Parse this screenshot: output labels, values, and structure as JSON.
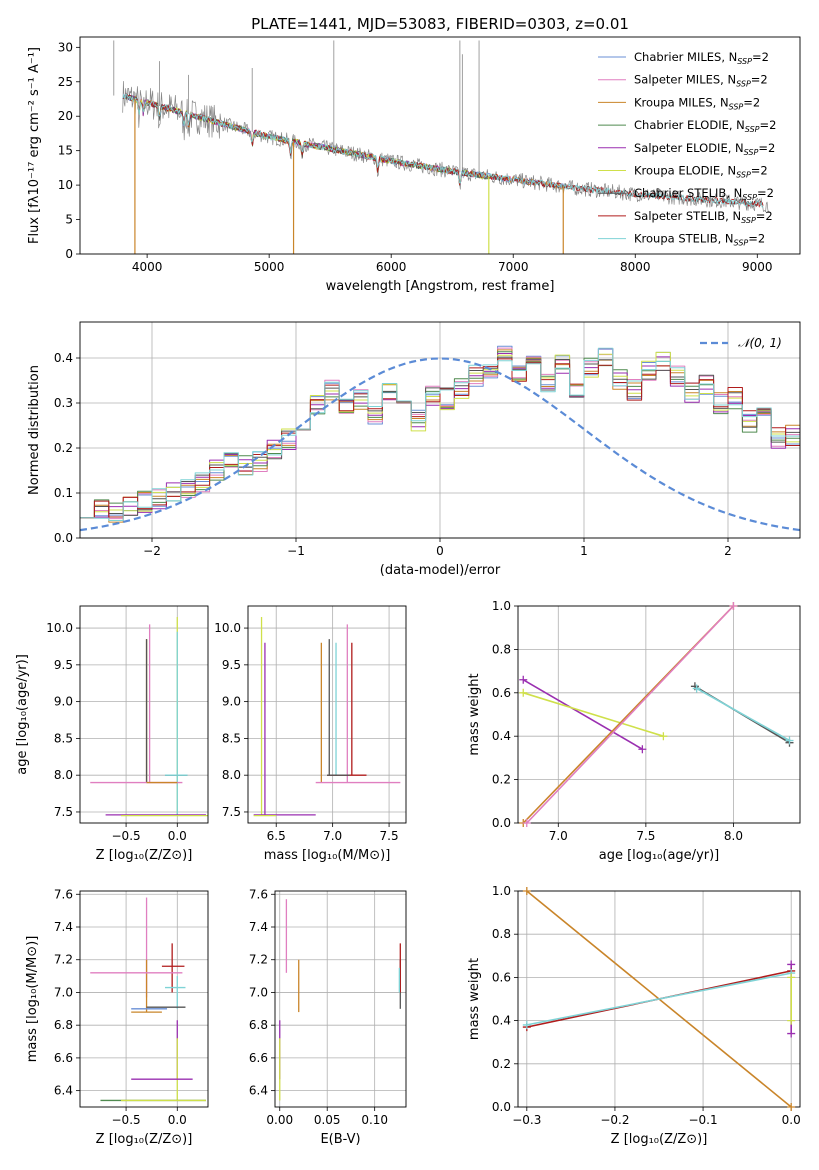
{
  "figure_title": "PLATE=1441, MJD=53083, FIBERID=0303, z=0.01",
  "colors": {
    "Chabrier MILES": "#6a8fd6",
    "Salpeter MILES": "#e07fc0",
    "Kroupa MILES": "#c9852a",
    "Chabrier ELODIE": "#4f8a4f",
    "Salpeter ELODIE": "#9a2fb0",
    "Kroupa ELODIE": "#cfe04a",
    "Chabrier STELIB": "#555555",
    "Salpeter STELIB": "#b01c1c",
    "Kroupa STELIB": "#7fd3d6",
    "observed": "#888888",
    "normal": "#5b8bd6"
  },
  "chart_data": [
    {
      "id": "spectrum",
      "type": "line",
      "title": "PLATE=1441, MJD=53083, FIBERID=0303, z=0.01",
      "xlabel": "wavelength [Angstrom, rest frame]",
      "ylabel": "Flux [fλ10⁻¹⁷ erg cm⁻² s⁻¹ A⁻¹]",
      "xlim": [
        3450,
        9350
      ],
      "ylim": [
        0,
        31.5
      ],
      "xticks": [
        4000,
        5000,
        6000,
        7000,
        8000,
        9000
      ],
      "yticks": [
        0,
        5,
        10,
        15,
        20,
        25,
        30
      ],
      "legend_position": "top-right",
      "legend": [
        "Chabrier MILES, N_SSP=2",
        "Salpeter MILES, N_SSP=2",
        "Kroupa MILES, N_SSP=2",
        "Chabrier ELODIE, N_SSP=2",
        "Salpeter ELODIE, N_SSP=2",
        "Kroupa ELODIE, N_SSP=2",
        "Chabrier STELIB, N_SSP=2",
        "Salpeter STELIB, N_SSP=2",
        "Kroupa STELIB, N_SSP=2"
      ],
      "continuum": {
        "x": [
          3800,
          4000,
          4300,
          4700,
          5000,
          5500,
          6000,
          6500,
          7000,
          7500,
          8000,
          8500,
          9000,
          9100
        ],
        "y": [
          23,
          22,
          20.5,
          18.5,
          17,
          15.3,
          13.5,
          12,
          10.8,
          9.6,
          8.7,
          8,
          7.3,
          7.1
        ]
      },
      "model_ranges": {
        "MILES": [
          3800,
          7420
        ],
        "ELODIE": [
          3880,
          6800
        ],
        "STELIB": [
          3800,
          9050
        ]
      },
      "dropouts": [
        {
          "x": 3900,
          "model": "Kroupa MILES"
        },
        {
          "x": 5200,
          "model": "Kroupa MILES"
        },
        {
          "x": 6800,
          "model": "Kroupa ELODIE"
        },
        {
          "x": 7410,
          "model": "Kroupa MILES"
        }
      ],
      "emission_lines": [
        {
          "x": 3727,
          "y": 31
        },
        {
          "x": 4102,
          "y": 28
        },
        {
          "x": 4340,
          "y": 26
        },
        {
          "x": 4861,
          "y": 27
        },
        {
          "x": 5530,
          "y": 31
        },
        {
          "x": 6563,
          "y": 31
        },
        {
          "x": 6583,
          "y": 29
        },
        {
          "x": 6720,
          "y": 31
        }
      ]
    },
    {
      "id": "residuals",
      "type": "histogram",
      "xlabel": "(data-model)/error",
      "ylabel": "Normed distribution",
      "xlim": [
        -2.5,
        2.5
      ],
      "ylim": [
        0,
        0.48
      ],
      "xticks": [
        -2,
        -1,
        0,
        1,
        2
      ],
      "yticks": [
        0.0,
        0.1,
        0.2,
        0.3,
        0.4
      ],
      "legend": [
        "𝒩(0, 1)"
      ],
      "legend_position": "top-right",
      "bin_width": 0.1,
      "base_values": [
        0.07,
        0.06,
        0.06,
        0.07,
        0.08,
        0.09,
        0.1,
        0.11,
        0.12,
        0.15,
        0.17,
        0.16,
        0.17,
        0.2,
        0.22,
        0.24,
        0.3,
        0.33,
        0.29,
        0.31,
        0.27,
        0.33,
        0.3,
        0.26,
        0.32,
        0.31,
        0.33,
        0.36,
        0.38,
        0.41,
        0.36,
        0.38,
        0.34,
        0.39,
        0.32,
        0.38,
        0.4,
        0.35,
        0.33,
        0.37,
        0.39,
        0.36,
        0.32,
        0.34,
        0.3,
        0.31,
        0.26,
        0.28,
        0.22,
        0.23,
        0.21,
        0.18,
        0.16,
        0.13,
        0.12,
        0.11,
        0.1,
        0.08,
        0.07,
        0.06,
        0.06,
        0.07,
        0.06,
        0.05,
        0.05,
        0.04,
        0.03,
        0.02,
        0.02,
        0.02
      ]
    },
    {
      "id": "age-vs-Z",
      "type": "scatter",
      "xlabel": "Z [log₁₀(Z/Z⊙)]",
      "ylabel": "age [log₁₀(age/yr)]",
      "xlim": [
        -0.95,
        0.3
      ],
      "ylim": [
        7.35,
        10.3
      ],
      "xticks": [
        -0.5,
        0.0
      ],
      "yticks": [
        7.5,
        8.0,
        8.5,
        9.0,
        9.5,
        10.0
      ]
    },
    {
      "id": "age-vs-mass",
      "type": "scatter",
      "xlabel": "mass [log₁₀(M/M⊙)]",
      "xlim": [
        6.25,
        7.65
      ],
      "ylim": [
        7.35,
        10.3
      ],
      "xticks": [
        6.5,
        7.0,
        7.5
      ],
      "yticks": [
        7.5,
        8.0,
        8.5,
        9.0,
        9.5,
        10.0
      ]
    },
    {
      "id": "weight-vs-age",
      "type": "line",
      "xlabel": "age [log₁₀(age/yr)]",
      "ylabel": "mass weight",
      "xlim": [
        6.77,
        8.38
      ],
      "ylim": [
        0,
        1
      ],
      "xticks": [
        7.0,
        7.5,
        8.0
      ],
      "yticks": [
        0.0,
        0.2,
        0.4,
        0.6,
        0.8,
        1.0
      ],
      "series": [
        {
          "model": "Salpeter ELODIE",
          "x": [
            6.8,
            7.48
          ],
          "y": [
            0.66,
            0.34
          ]
        },
        {
          "model": "Kroupa ELODIE",
          "x": [
            6.8,
            7.6
          ],
          "y": [
            0.6,
            0.4
          ]
        },
        {
          "model": "Chabrier STELIB",
          "x": [
            7.78,
            8.32
          ],
          "y": [
            0.63,
            0.37
          ]
        },
        {
          "model": "Kroupa STELIB",
          "x": [
            7.79,
            8.32
          ],
          "y": [
            0.62,
            0.38
          ]
        },
        {
          "model": "Kroupa MILES",
          "x": [
            6.8,
            8.0
          ],
          "y": [
            0.0,
            1.0
          ]
        },
        {
          "model": "Salpeter MILES",
          "x": [
            6.82,
            8.0
          ],
          "y": [
            0.0,
            1.0
          ]
        }
      ]
    },
    {
      "id": "mass-vs-Z",
      "type": "scatter",
      "xlabel": "Z [log₁₀(Z/Z⊙)]",
      "ylabel": "mass [log₁₀(M/M⊙)]",
      "xlim": [
        -0.95,
        0.3
      ],
      "ylim": [
        6.3,
        7.62
      ],
      "xticks": [
        -0.5,
        0.0
      ],
      "yticks": [
        6.4,
        6.6,
        6.8,
        7.0,
        7.2,
        7.4,
        7.6
      ]
    },
    {
      "id": "mass-vs-EBV",
      "type": "scatter",
      "xlabel": "E(B-V)",
      "xlim": [
        -0.005,
        0.133
      ],
      "ylim": [
        6.3,
        7.62
      ],
      "xticks": [
        0.0,
        0.05,
        0.1
      ],
      "yticks": [
        6.4,
        6.6,
        6.8,
        7.0,
        7.2,
        7.4,
        7.6
      ]
    },
    {
      "id": "weight-vs-Z",
      "type": "line",
      "xlabel": "Z [log₁₀(Z/Z⊙)]",
      "ylabel": "mass weight",
      "xlim": [
        -0.31,
        0.01
      ],
      "ylim": [
        0,
        1
      ],
      "xticks": [
        -0.3,
        -0.2,
        -0.1,
        0.0
      ],
      "yticks": [
        0.0,
        0.2,
        0.4,
        0.6,
        0.8,
        1.0
      ],
      "series": [
        {
          "model": "Kroupa MILES",
          "x": [
            -0.3,
            0.0
          ],
          "y": [
            1.0,
            0.0
          ]
        },
        {
          "model": "Salpeter STELIB",
          "x": [
            -0.3,
            0.0
          ],
          "y": [
            0.37,
            0.63
          ]
        },
        {
          "model": "Kroupa STELIB",
          "x": [
            -0.3,
            0.0
          ],
          "y": [
            0.38,
            0.62
          ]
        },
        {
          "model": "Salpeter ELODIE",
          "x": [
            0.0,
            0.0
          ],
          "y": [
            0.34,
            0.66
          ]
        },
        {
          "model": "Kroupa ELODIE",
          "x": [
            0.0,
            0.0
          ],
          "y": [
            0.4,
            0.6
          ]
        }
      ]
    }
  ]
}
